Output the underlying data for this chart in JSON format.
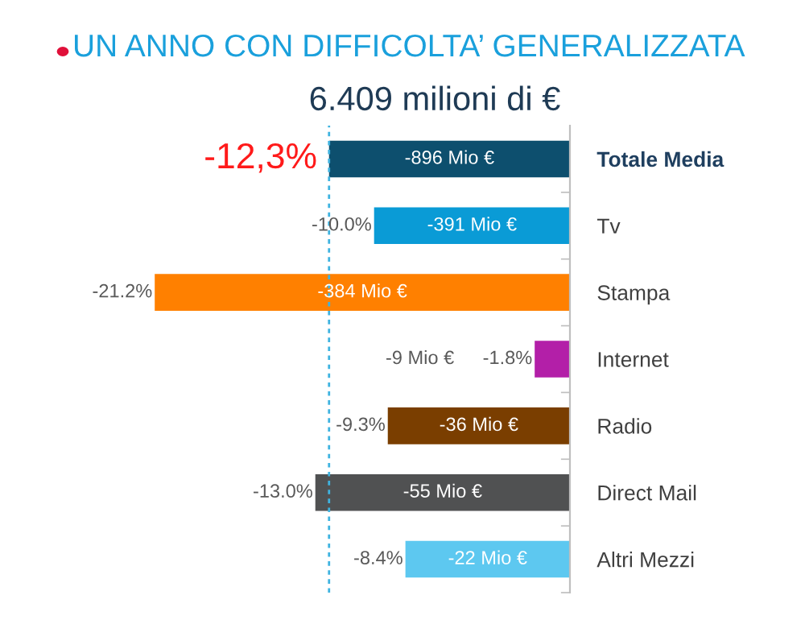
{
  "chart_data": {
    "type": "bar",
    "orientation": "horizontal",
    "title": "UN ANNO CON DIFFICOLTA’ GENERALIZZATA",
    "subtitle": "6.409 milioni di €",
    "categories": [
      "Totale Media",
      "Tv",
      "Stampa",
      "Internet",
      "Radio",
      "Direct Mail",
      "Altri Mezzi"
    ],
    "values": [
      -12.3,
      -10.0,
      -21.2,
      -1.8,
      -9.3,
      -13.0,
      -8.4
    ],
    "value_labels": [
      "-12,3%",
      "-10.0%",
      "-21.2%",
      "-1.8%",
      "-9.3%",
      "-13.0%",
      "-8.4%"
    ],
    "colors": [
      "#0d4f6e",
      "#0a9bd6",
      "#ff8000",
      "#b31fa8",
      "#7a3e00",
      "#505152",
      "#5dc8f0"
    ],
    "annotations": [
      "-896 Mio €",
      "-391 Mio €",
      "-384 Mio €",
      "-9 Mio €",
      "-36 Mio €",
      "-55 Mio €",
      "-22 Mio €"
    ],
    "ref_lines": [
      {
        "axis": "x",
        "value": -12.3,
        "color": "#3fb3e0",
        "line_style": "dashed"
      }
    ],
    "tick_labels": "y"
  }
}
